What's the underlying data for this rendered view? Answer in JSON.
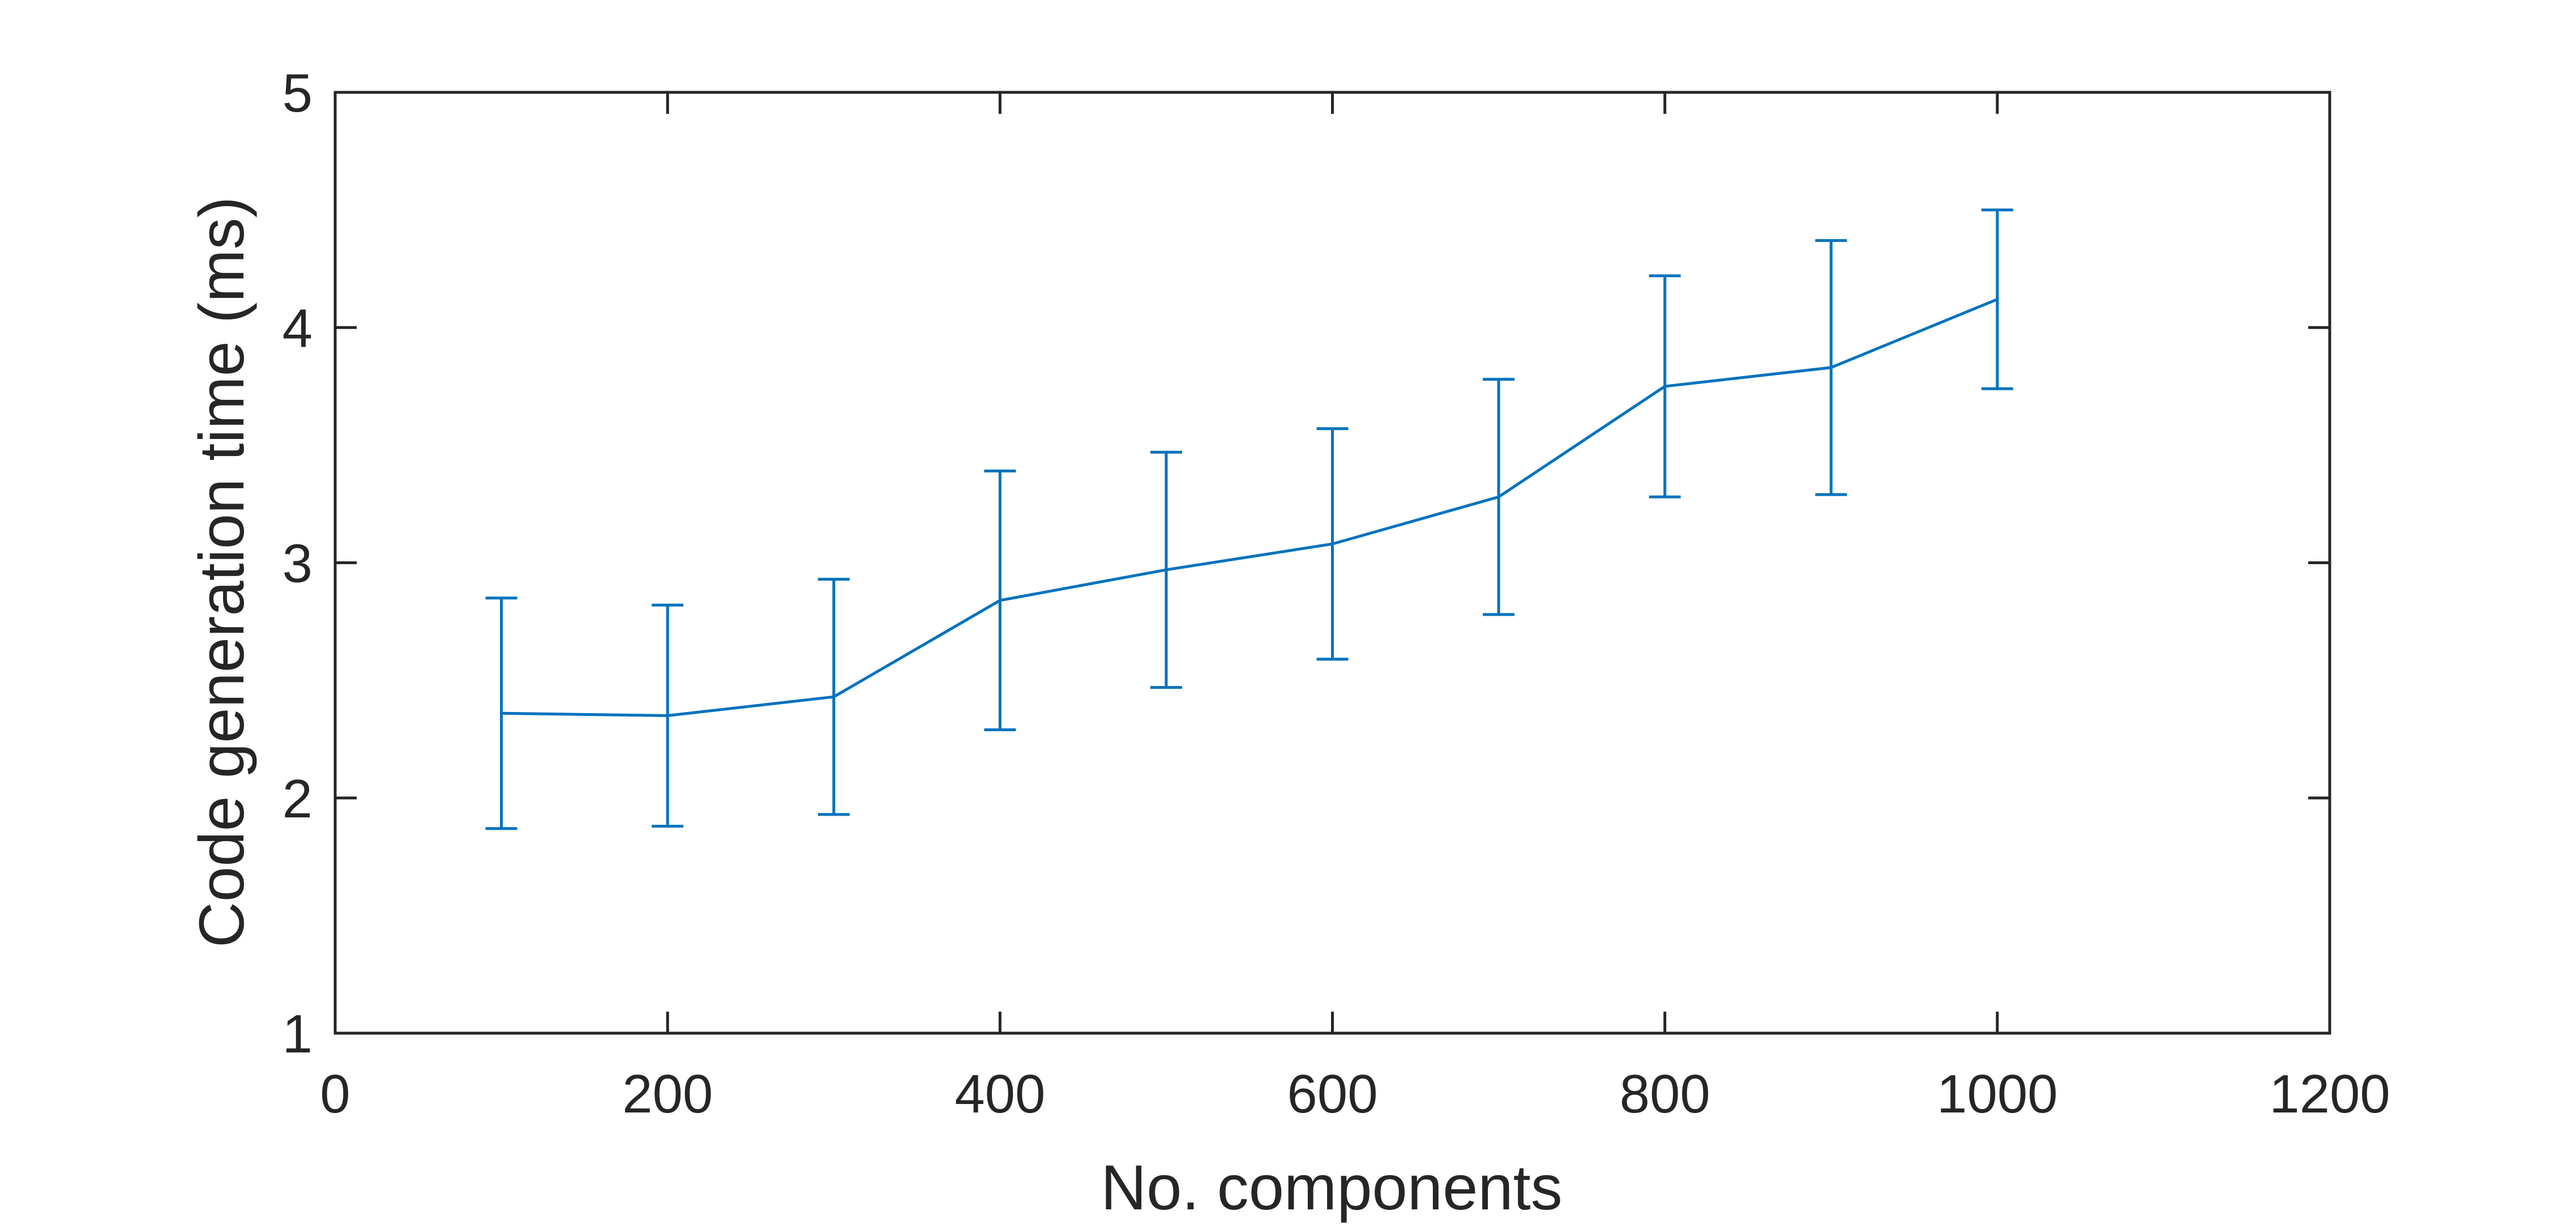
{
  "chart_data": {
    "type": "line",
    "title": "",
    "xlabel": "No. components",
    "ylabel": "Code generation time (ms)",
    "xlim": [
      0,
      1200
    ],
    "ylim": [
      1,
      5
    ],
    "xticks": [
      0,
      200,
      400,
      600,
      800,
      1000,
      1200
    ],
    "yticks": [
      1,
      2,
      3,
      4,
      5
    ],
    "x_tick_labels": [
      "0",
      "200",
      "400",
      "600",
      "800",
      "1000",
      "1200"
    ],
    "y_tick_labels": [
      "1",
      "2",
      "3",
      "4",
      "5"
    ],
    "grid": false,
    "series": [
      {
        "x": [
          100,
          200,
          300,
          400,
          500,
          600,
          700,
          800,
          900,
          1000
        ],
        "y": [
          2.36,
          2.35,
          2.43,
          2.84,
          2.97,
          3.08,
          3.28,
          3.75,
          3.83,
          4.12
        ],
        "error_lower": [
          1.87,
          1.88,
          1.93,
          2.29,
          2.47,
          2.59,
          2.78,
          3.28,
          3.29,
          3.74
        ],
        "error_upper": [
          2.85,
          2.82,
          2.93,
          3.39,
          3.47,
          3.57,
          3.78,
          4.22,
          4.37,
          4.5
        ],
        "color": "#0072BD"
      }
    ],
    "axis_color": "#262626"
  }
}
